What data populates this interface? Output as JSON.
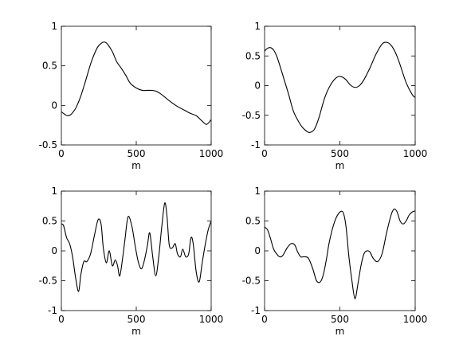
{
  "chart_data": [
    {
      "type": "line",
      "xlabel": "m",
      "ylabel": "",
      "title": "",
      "xlim": [
        0,
        1000
      ],
      "ylim": [
        -0.5,
        1
      ],
      "xticks": [
        0,
        500,
        1000
      ],
      "xtick_labels": [
        "0",
        "500",
        "1000"
      ],
      "yticks": [
        -0.5,
        0,
        0.5,
        1
      ],
      "ytick_labels": [
        "-0.5",
        "0",
        "0.5",
        "1"
      ],
      "grid": false,
      "series": [
        {
          "x": [
            0,
            20,
            40,
            60,
            80,
            100,
            130,
            160,
            200,
            240,
            270,
            290,
            310,
            340,
            370,
            400,
            430,
            460,
            500,
            540,
            570,
            600,
            630,
            660,
            700,
            740,
            780,
            820,
            860,
            900,
            940,
            970,
            1000
          ],
          "values": [
            -0.08,
            -0.11,
            -0.13,
            -0.12,
            -0.08,
            -0.02,
            0.12,
            0.3,
            0.55,
            0.73,
            0.79,
            0.8,
            0.77,
            0.68,
            0.55,
            0.47,
            0.38,
            0.28,
            0.22,
            0.19,
            0.19,
            0.19,
            0.18,
            0.15,
            0.09,
            0.03,
            -0.02,
            -0.06,
            -0.1,
            -0.13,
            -0.2,
            -0.24,
            -0.18
          ]
        }
      ]
    },
    {
      "type": "line",
      "xlabel": "m",
      "ylabel": "",
      "title": "",
      "xlim": [
        0,
        1000
      ],
      "ylim": [
        -1,
        1
      ],
      "xticks": [
        0,
        500,
        1000
      ],
      "xtick_labels": [
        "0",
        "500",
        "1000"
      ],
      "yticks": [
        -1,
        -0.5,
        0,
        0.5,
        1
      ],
      "ytick_labels": [
        "-1",
        "-0.5",
        "0",
        "0.5",
        "1"
      ],
      "grid": false,
      "series": [
        {
          "x": [
            0,
            20,
            40,
            60,
            80,
            100,
            130,
            160,
            190,
            220,
            250,
            280,
            300,
            330,
            360,
            400,
            440,
            480,
            510,
            540,
            570,
            600,
            630,
            660,
            700,
            740,
            780,
            810,
            840,
            870,
            900,
            940,
            980,
            1000
          ],
          "values": [
            0.58,
            0.63,
            0.64,
            0.6,
            0.5,
            0.35,
            0.1,
            -0.15,
            -0.42,
            -0.58,
            -0.7,
            -0.77,
            -0.79,
            -0.74,
            -0.55,
            -0.2,
            0.02,
            0.14,
            0.15,
            0.1,
            0.01,
            -0.03,
            0.0,
            0.1,
            0.3,
            0.53,
            0.7,
            0.73,
            0.68,
            0.55,
            0.35,
            0.05,
            -0.15,
            -0.2
          ]
        }
      ]
    },
    {
      "type": "line",
      "xlabel": "m",
      "ylabel": "",
      "title": "",
      "xlim": [
        0,
        1000
      ],
      "ylim": [
        -1,
        1
      ],
      "xticks": [
        0,
        500,
        1000
      ],
      "xtick_labels": [
        "0",
        "500",
        "1000"
      ],
      "yticks": [
        -1,
        -0.5,
        0,
        0.5,
        1
      ],
      "ytick_labels": [
        "-1",
        "-0.5",
        "0",
        "0.5",
        "1"
      ],
      "grid": false,
      "series": [
        {
          "x": [
            0,
            15,
            35,
            55,
            75,
            95,
            115,
            130,
            150,
            170,
            195,
            220,
            245,
            265,
            280,
            300,
            320,
            340,
            360,
            375,
            390,
            410,
            425,
            445,
            470,
            495,
            515,
            535,
            555,
            575,
            590,
            610,
            630,
            650,
            670,
            690,
            705,
            720,
            740,
            760,
            775,
            795,
            810,
            830,
            850,
            865,
            880,
            900,
            920,
            940,
            960,
            980,
            1000
          ],
          "values": [
            0.45,
            0.42,
            0.22,
            0.12,
            -0.1,
            -0.45,
            -0.68,
            -0.4,
            -0.18,
            -0.18,
            -0.05,
            0.25,
            0.52,
            0.45,
            0.05,
            -0.2,
            0.0,
            -0.25,
            -0.15,
            -0.25,
            -0.42,
            -0.1,
            0.2,
            0.57,
            0.42,
            0.05,
            -0.2,
            -0.3,
            -0.15,
            0.1,
            0.3,
            -0.1,
            -0.42,
            -0.1,
            0.4,
            0.8,
            0.58,
            0.1,
            0.05,
            0.12,
            -0.05,
            -0.1,
            0.03,
            -0.1,
            -0.05,
            0.22,
            0.12,
            -0.35,
            -0.52,
            -0.2,
            0.1,
            0.35,
            0.5
          ]
        }
      ]
    },
    {
      "type": "line",
      "xlabel": "m",
      "ylabel": "",
      "title": "",
      "xlim": [
        0,
        1000
      ],
      "ylim": [
        -1,
        1
      ],
      "xticks": [
        0,
        500,
        1000
      ],
      "xtick_labels": [
        "0",
        "500",
        "1000"
      ],
      "yticks": [
        -1,
        -0.5,
        0,
        0.5,
        1
      ],
      "ytick_labels": [
        "-1",
        "-0.5",
        "0",
        "0.5",
        "1"
      ],
      "grid": false,
      "series": [
        {
          "x": [
            0,
            20,
            40,
            60,
            80,
            100,
            120,
            150,
            175,
            200,
            220,
            240,
            260,
            290,
            320,
            345,
            370,
            390,
            410,
            430,
            460,
            490,
            520,
            540,
            560,
            580,
            600,
            620,
            640,
            660,
            680,
            700,
            720,
            750,
            780,
            810,
            840,
            860,
            880,
            900,
            920,
            940,
            960,
            980,
            1000
          ],
          "values": [
            0.4,
            0.35,
            0.2,
            0.03,
            -0.05,
            -0.1,
            -0.08,
            0.05,
            0.12,
            0.1,
            -0.02,
            -0.1,
            -0.1,
            -0.12,
            -0.3,
            -0.5,
            -0.52,
            -0.4,
            -0.15,
            0.15,
            0.45,
            0.62,
            0.65,
            0.42,
            -0.1,
            -0.5,
            -0.8,
            -0.55,
            -0.25,
            -0.05,
            0.0,
            -0.02,
            -0.12,
            -0.18,
            -0.05,
            0.3,
            0.6,
            0.7,
            0.65,
            0.5,
            0.45,
            0.5,
            0.6,
            0.65,
            0.67
          ]
        }
      ]
    }
  ]
}
